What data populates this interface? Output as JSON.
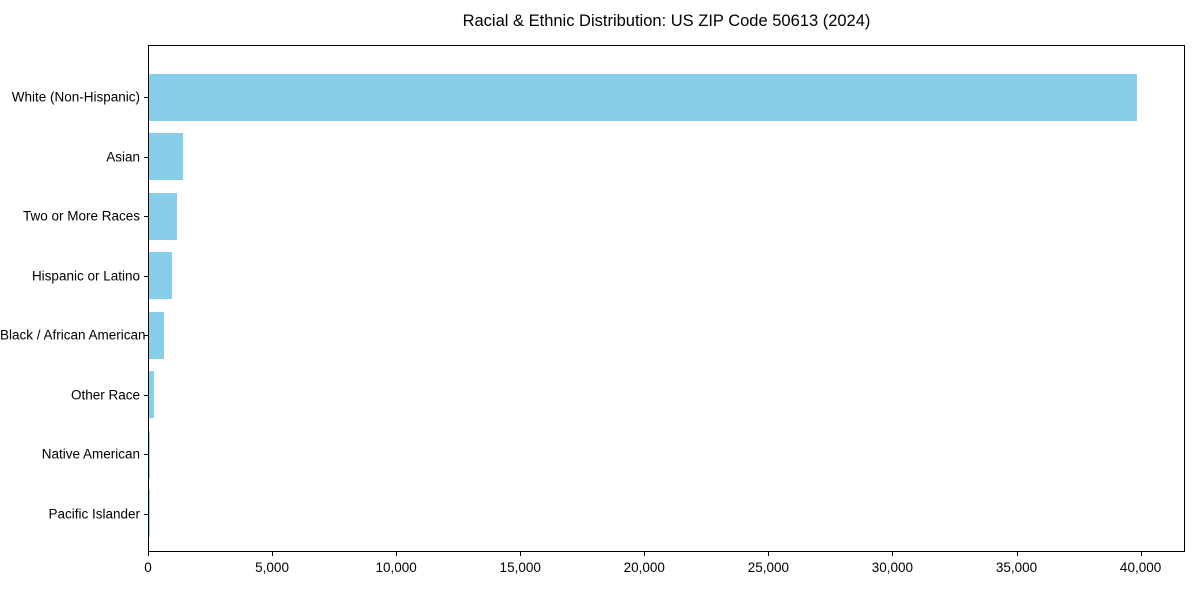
{
  "chart_data": {
    "type": "bar",
    "orientation": "horizontal",
    "title": "Racial & Ethnic Distribution: US ZIP Code 50613 (2024)",
    "xlabel": "",
    "ylabel": "",
    "categories": [
      "White (Non-Hispanic)",
      "Asian",
      "Two or More Races",
      "Hispanic or Latino",
      "Black / African American",
      "Other Race",
      "Native American",
      "Pacific Islander"
    ],
    "values": [
      39800,
      1370,
      1130,
      930,
      620,
      185,
      30,
      10
    ],
    "xlim": [
      0,
      41790
    ],
    "xticks": [
      0,
      5000,
      10000,
      15000,
      20000,
      25000,
      30000,
      35000,
      40000
    ],
    "xtick_labels": [
      "0",
      "5,000",
      "10,000",
      "15,000",
      "20,000",
      "25,000",
      "30,000",
      "35,000",
      "40,000"
    ],
    "grid": false,
    "legend": "none",
    "bar_color": "#87CEEB",
    "spine_color": "#000000",
    "text_color": "#000000",
    "background_color": "#ffffff"
  }
}
